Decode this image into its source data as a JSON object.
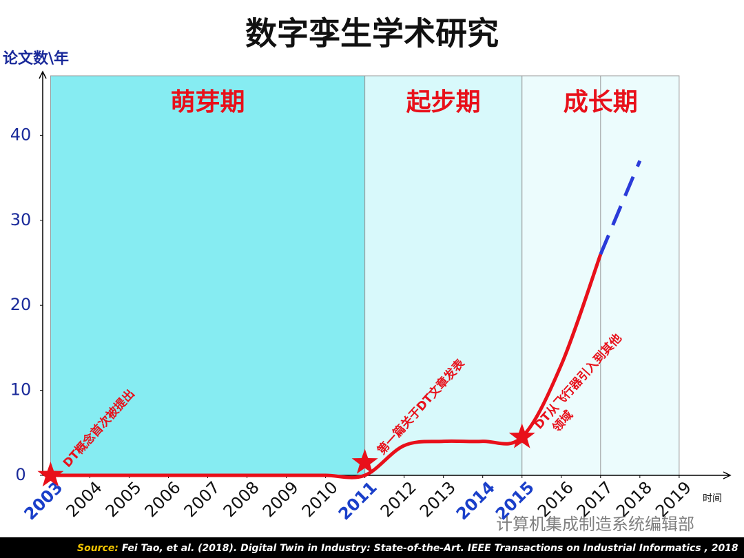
{
  "chart_data": {
    "type": "line",
    "title": "数字孪生学术研究",
    "y_label": "论文数\\年",
    "x_label": "时间",
    "x": [
      2003,
      2004,
      2005,
      2006,
      2007,
      2008,
      2009,
      2010,
      2011,
      2012,
      2013,
      2014,
      2015,
      2016,
      2017,
      2018,
      2019
    ],
    "xlim": [
      2002.8,
      2020.3
    ],
    "xticks": [
      2003,
      2004,
      2005,
      2006,
      2007,
      2008,
      2009,
      2010,
      2011,
      2012,
      2013,
      2014,
      2015,
      2016,
      2017,
      2018,
      2019
    ],
    "highlight_xticks": [
      2003,
      2011,
      2014,
      2015
    ],
    "ylim": [
      0,
      47
    ],
    "yticks": [
      0,
      10,
      20,
      30,
      40
    ],
    "series": [
      {
        "color": "#e8101a",
        "style": "solid",
        "values": [
          0,
          0,
          0,
          0,
          0,
          0,
          0,
          0,
          0,
          3.5,
          4,
          4,
          4.5,
          13,
          26,
          null,
          null
        ]
      },
      {
        "color": "#2a3bd9",
        "style": "dashed",
        "values": [
          null,
          null,
          null,
          null,
          null,
          null,
          null,
          null,
          null,
          null,
          null,
          null,
          null,
          null,
          26,
          37,
          null
        ]
      }
    ],
    "periods": [
      {
        "label": "萌芽期",
        "start": 2003,
        "end": 2011,
        "color": "#86ecf2"
      },
      {
        "label": "起步期",
        "start": 2011,
        "end": 2015,
        "color": "#d8f9fb"
      },
      {
        "label": "成长期",
        "start": 2015,
        "end": 2019,
        "color": "#ecfcfd"
      }
    ],
    "events": [
      {
        "x": 2003,
        "value": 0,
        "label": [
          "DT概念首次被提出"
        ]
      },
      {
        "x": 2011,
        "value": 1.5,
        "label": [
          "第一篇关于DT文章发表"
        ]
      },
      {
        "x": 2015,
        "value": 4.5,
        "label": [
          "DT从飞行器引入到其他",
          "领域"
        ]
      }
    ],
    "source": {
      "prefix": "Source:",
      "text": "Fei Tao, et al. (2018). Digital Twin in Industry: State-of-the-Art. IEEE Transactions on Industrial Informatics , 2018"
    },
    "watermark": "计算机集成制造系统编辑部"
  }
}
